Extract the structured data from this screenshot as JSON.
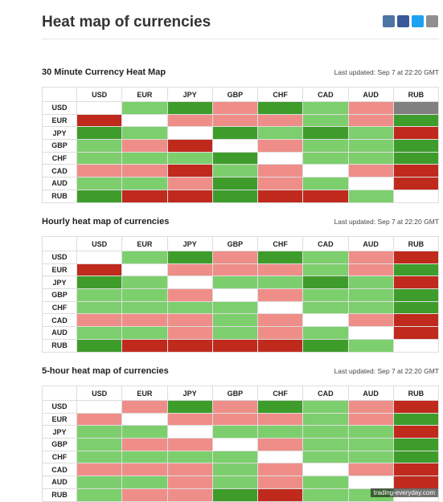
{
  "header": {
    "title": "Heat map of currencies"
  },
  "watermark": "trading-everyday.com",
  "tables": [
    {
      "title": "30 Minute Currency Heat Map",
      "updated": "Last updated: Sep 7 at 22:20 GMT",
      "columns": [
        "USD",
        "EUR",
        "JPY",
        "GBP",
        "CHF",
        "CAD",
        "AUD",
        "RUB"
      ],
      "rows": [
        "USD",
        "EUR",
        "JPY",
        "GBP",
        "CHF",
        "CAD",
        "AUD",
        "RUB"
      ],
      "cells": [
        [
          "#ffffff",
          "#7ccf6c",
          "#3e9c2b",
          "#ef8e88",
          "#3e9c2b",
          "#7ccf6c",
          "#ef8e88",
          "#808080"
        ],
        [
          "#bf2a1d",
          "#ffffff",
          "#ef8e88",
          "#ef8e88",
          "#ef8e88",
          "#7ccf6c",
          "#ef8e88",
          "#3e9c2b"
        ],
        [
          "#3e9c2b",
          "#7ccf6c",
          "#ffffff",
          "#3e9c2b",
          "#7ccf6c",
          "#3e9c2b",
          "#7ccf6c",
          "#bf2a1d"
        ],
        [
          "#7ccf6c",
          "#ef8e88",
          "#bf2a1d",
          "#ffffff",
          "#ef8e88",
          "#7ccf6c",
          "#7ccf6c",
          "#3e9c2b"
        ],
        [
          "#7ccf6c",
          "#7ccf6c",
          "#7ccf6c",
          "#3e9c2b",
          "#ffffff",
          "#7ccf6c",
          "#7ccf6c",
          "#3e9c2b"
        ],
        [
          "#ef8e88",
          "#ef8e88",
          "#bf2a1d",
          "#7ccf6c",
          "#ef8e88",
          "#ffffff",
          "#ef8e88",
          "#bf2a1d"
        ],
        [
          "#7ccf6c",
          "#7ccf6c",
          "#ef8e88",
          "#3e9c2b",
          "#ef8e88",
          "#7ccf6c",
          "#ffffff",
          "#bf2a1d"
        ],
        [
          "#3e9c2b",
          "#bf2a1d",
          "#bf2a1d",
          "#3e9c2b",
          "#bf2a1d",
          "#bf2a1d",
          "#7ccf6c",
          "#ffffff"
        ]
      ]
    },
    {
      "title": "Hourly heat map of currencies",
      "updated": "Last updated: Sep 7 at 22:20 GMT",
      "columns": [
        "USD",
        "EUR",
        "JPY",
        "GBP",
        "CHF",
        "CAD",
        "AUD",
        "RUB"
      ],
      "rows": [
        "USD",
        "EUR",
        "JPY",
        "GBP",
        "CHF",
        "CAD",
        "AUD",
        "RUB"
      ],
      "cells": [
        [
          "#ffffff",
          "#7ccf6c",
          "#3e9c2b",
          "#ef8e88",
          "#3e9c2b",
          "#7ccf6c",
          "#ef8e88",
          "#bf2a1d"
        ],
        [
          "#bf2a1d",
          "#ffffff",
          "#ef8e88",
          "#ef8e88",
          "#ef8e88",
          "#7ccf6c",
          "#ef8e88",
          "#3e9c2b"
        ],
        [
          "#3e9c2b",
          "#7ccf6c",
          "#ffffff",
          "#7ccf6c",
          "#7ccf6c",
          "#3e9c2b",
          "#7ccf6c",
          "#bf2a1d"
        ],
        [
          "#7ccf6c",
          "#7ccf6c",
          "#ef8e88",
          "#ffffff",
          "#ef8e88",
          "#7ccf6c",
          "#7ccf6c",
          "#3e9c2b"
        ],
        [
          "#7ccf6c",
          "#7ccf6c",
          "#7ccf6c",
          "#7ccf6c",
          "#ffffff",
          "#7ccf6c",
          "#7ccf6c",
          "#3e9c2b"
        ],
        [
          "#ef8e88",
          "#ef8e88",
          "#ef8e88",
          "#7ccf6c",
          "#ef8e88",
          "#ffffff",
          "#ef8e88",
          "#bf2a1d"
        ],
        [
          "#7ccf6c",
          "#7ccf6c",
          "#ef8e88",
          "#7ccf6c",
          "#ef8e88",
          "#7ccf6c",
          "#ffffff",
          "#bf2a1d"
        ],
        [
          "#3e9c2b",
          "#bf2a1d",
          "#bf2a1d",
          "#bf2a1d",
          "#bf2a1d",
          "#3e9c2b",
          "#7ccf6c",
          "#ffffff"
        ]
      ]
    },
    {
      "title": "5-hour heat map of currencies",
      "updated": "Last updated: Sep 7 at 22:20 GMT",
      "columns": [
        "USD",
        "EUR",
        "JPY",
        "GBP",
        "CHF",
        "CAD",
        "AUD",
        "RUB"
      ],
      "rows": [
        "USD",
        "EUR",
        "JPY",
        "GBP",
        "CHF",
        "CAD",
        "AUD",
        "RUB"
      ],
      "cells": [
        [
          "#ffffff",
          "#ef8e88",
          "#3e9c2b",
          "#ef8e88",
          "#3e9c2b",
          "#7ccf6c",
          "#ef8e88",
          "#bf2a1d"
        ],
        [
          "#ef8e88",
          "#ffffff",
          "#ef8e88",
          "#ef8e88",
          "#ef8e88",
          "#7ccf6c",
          "#ef8e88",
          "#3e9c2b"
        ],
        [
          "#7ccf6c",
          "#7ccf6c",
          "#ffffff",
          "#7ccf6c",
          "#7ccf6c",
          "#7ccf6c",
          "#7ccf6c",
          "#bf2a1d"
        ],
        [
          "#7ccf6c",
          "#ef8e88",
          "#ef8e88",
          "#ffffff",
          "#ef8e88",
          "#7ccf6c",
          "#7ccf6c",
          "#3e9c2b"
        ],
        [
          "#7ccf6c",
          "#7ccf6c",
          "#7ccf6c",
          "#7ccf6c",
          "#ffffff",
          "#7ccf6c",
          "#7ccf6c",
          "#3e9c2b"
        ],
        [
          "#ef8e88",
          "#ef8e88",
          "#ef8e88",
          "#7ccf6c",
          "#ef8e88",
          "#ffffff",
          "#ef8e88",
          "#bf2a1d"
        ],
        [
          "#7ccf6c",
          "#7ccf6c",
          "#ef8e88",
          "#7ccf6c",
          "#ef8e88",
          "#7ccf6c",
          "#ffffff",
          "#bf2a1d"
        ],
        [
          "#7ccf6c",
          "#ef8e88",
          "#ef8e88",
          "#3e9c2b",
          "#bf2a1d",
          "#7ccf6c",
          "#7ccf6c",
          "#ffffff"
        ]
      ]
    }
  ]
}
